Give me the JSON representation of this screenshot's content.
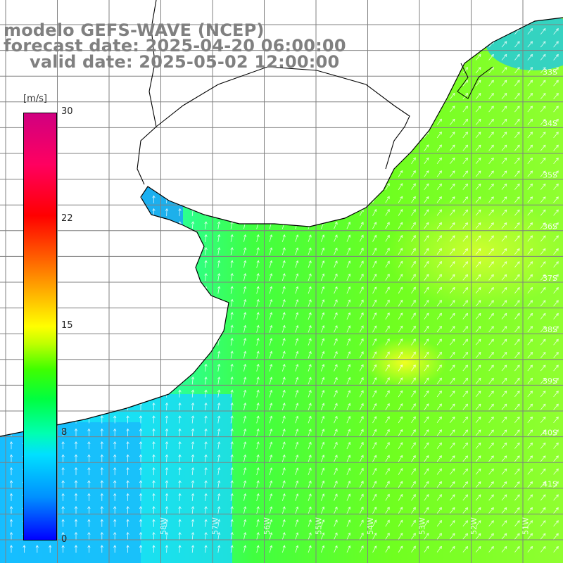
{
  "title": {
    "model": "modelo GEFS-WAVE (NCEP)",
    "forecast": "forecast date: 2025-04-20 06:00:00",
    "valid": "valid date: 2025-05-02 12:00:00"
  },
  "colorbar": {
    "unit": "[m/s]",
    "ticks": [
      "30",
      "22",
      "15",
      "8",
      "0"
    ]
  },
  "map": {
    "lat_labels": [
      "33S",
      "34S",
      "35S",
      "36S",
      "37S",
      "38S",
      "39S",
      "40S",
      "41S"
    ],
    "lon_labels": [
      "58W",
      "57W",
      "56W",
      "55W",
      "54W",
      "53W",
      "52W",
      "51W"
    ],
    "grid": true,
    "field": "wind speed with direction arrows",
    "colors": {
      "land": "#ffffff",
      "coastline": "#000000",
      "gridline": "#808080",
      "arrows": "#ffffff"
    }
  }
}
